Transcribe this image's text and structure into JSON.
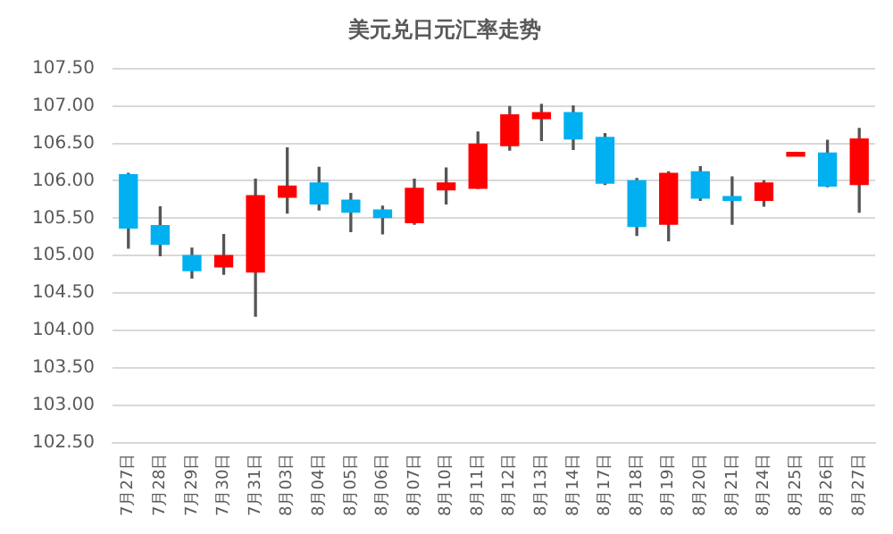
{
  "chart_data": {
    "type": "candlestick",
    "title": "美元兑日元汇率走势",
    "categories": [
      "7月27日",
      "7月28日",
      "7月29日",
      "7月30日",
      "7月31日",
      "8月03日",
      "8月04日",
      "8月05日",
      "8月06日",
      "8月07日",
      "8月10日",
      "8月11日",
      "8月12日",
      "8月13日",
      "8月14日",
      "8月17日",
      "8月18日",
      "8月19日",
      "8月20日",
      "8月21日",
      "8月24日",
      "8月25日",
      "8月26日",
      "8月27日"
    ],
    "ohlc": [
      [
        106.08,
        106.1,
        105.1,
        105.37
      ],
      [
        105.4,
        105.65,
        105.0,
        105.15
      ],
      [
        105.0,
        105.1,
        104.7,
        104.8
      ],
      [
        104.85,
        105.28,
        104.75,
        105.0
      ],
      [
        104.78,
        106.02,
        104.19,
        105.8
      ],
      [
        105.78,
        106.44,
        105.57,
        105.93
      ],
      [
        105.97,
        106.18,
        105.61,
        105.69
      ],
      [
        105.74,
        105.83,
        105.32,
        105.58
      ],
      [
        105.61,
        105.66,
        105.29,
        105.51
      ],
      [
        105.44,
        106.02,
        105.42,
        105.9
      ],
      [
        105.88,
        106.17,
        105.69,
        105.97
      ],
      [
        105.9,
        106.65,
        105.9,
        106.49
      ],
      [
        106.47,
        106.99,
        106.41,
        106.88
      ],
      [
        106.83,
        107.02,
        106.54,
        106.91
      ],
      [
        106.91,
        107.0,
        106.42,
        106.56
      ],
      [
        106.58,
        106.63,
        105.95,
        105.97
      ],
      [
        106.0,
        106.03,
        105.27,
        105.39
      ],
      [
        105.42,
        106.12,
        105.2,
        106.1
      ],
      [
        106.12,
        106.19,
        105.74,
        105.77
      ],
      [
        105.79,
        106.05,
        105.42,
        105.74
      ],
      [
        105.74,
        106.0,
        105.66,
        105.97
      ],
      [
        106.33,
        106.38,
        106.33,
        106.38
      ],
      [
        106.37,
        106.54,
        105.92,
        105.93
      ],
      [
        105.95,
        106.7,
        105.58,
        106.56
      ]
    ],
    "colors": [
      "#00b0f0",
      "#00b0f0",
      "#00b0f0",
      "#ff0000",
      "#ff0000",
      "#ff0000",
      "#00b0f0",
      "#00b0f0",
      "#00b0f0",
      "#ff0000",
      "#ff0000",
      "#ff0000",
      "#ff0000",
      "#ff0000",
      "#00b0f0",
      "#00b0f0",
      "#00b0f0",
      "#ff0000",
      "#00b0f0",
      "#00b0f0",
      "#ff0000",
      "#ff0000",
      "#00b0f0",
      "#ff0000"
    ],
    "ylim": [
      102.5,
      107.5
    ],
    "yticks": [
      {
        "value": 102.5,
        "label": "102.50"
      },
      {
        "value": 103,
        "label": "103.00"
      },
      {
        "value": 103.5,
        "label": "103.50"
      },
      {
        "value": 104,
        "label": "104.00"
      },
      {
        "value": 104.5,
        "label": "104.50"
      },
      {
        "value": 105,
        "label": "105.00"
      },
      {
        "value": 105.5,
        "label": "105.50"
      },
      {
        "value": 106,
        "label": "106.00"
      },
      {
        "value": 106.5,
        "label": "106.50"
      },
      {
        "value": 107,
        "label": "107.00"
      },
      {
        "value": 107.5,
        "label": "107.50"
      }
    ],
    "grid": "y",
    "legend": false
  }
}
